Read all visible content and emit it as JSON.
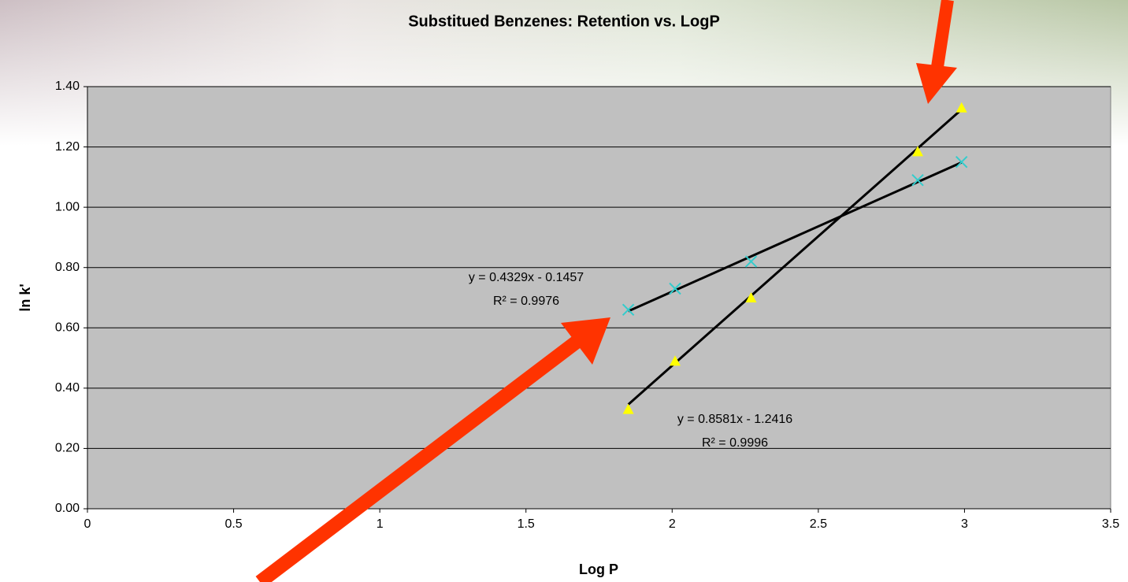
{
  "chart_data": {
    "type": "scatter",
    "title": "Substitued Benzenes:  Retention vs. LogP",
    "x_label": "Log P",
    "y_label": "ln k'",
    "xlim": [
      0,
      3.5
    ],
    "xticks": [
      0,
      0.5,
      1,
      1.5,
      2,
      2.5,
      3,
      3.5
    ],
    "ylim": [
      0,
      1.4
    ],
    "yticks": [
      {
        "value": 0,
        "label": "0.00"
      },
      {
        "value": 0.2,
        "label": "0.20"
      },
      {
        "value": 0.4,
        "label": "0.40"
      },
      {
        "value": 0.6,
        "label": "0.60"
      },
      {
        "value": 0.8,
        "label": "0.80"
      },
      {
        "value": 1.0,
        "label": "1.00"
      },
      {
        "value": 1.2,
        "label": "1.20"
      },
      {
        "value": 1.4,
        "label": "1.40"
      }
    ],
    "grid": true,
    "series": [
      {
        "color": "#33cccc",
        "marker": "x",
        "x": [
          1.85,
          2.01,
          2.27,
          2.84,
          2.99
        ],
        "values": [
          0.66,
          0.73,
          0.82,
          1.09,
          1.15
        ]
      },
      {
        "color": "#ffff00",
        "marker": "triangle",
        "x": [
          1.85,
          2.01,
          2.27,
          2.84,
          2.99
        ],
        "values": [
          0.33,
          0.49,
          0.7,
          1.185,
          1.33
        ]
      }
    ],
    "trendlines": [
      {
        "slope": 0.4329,
        "intercept": -0.1457,
        "equation": "y = 0.4329x - 0.1457",
        "r2": "R² = 0.9976"
      },
      {
        "slope": 0.8581,
        "intercept": -1.2416,
        "equation": "y = 0.8581x - 1.2416",
        "r2": "R² = 0.9996"
      }
    ]
  }
}
